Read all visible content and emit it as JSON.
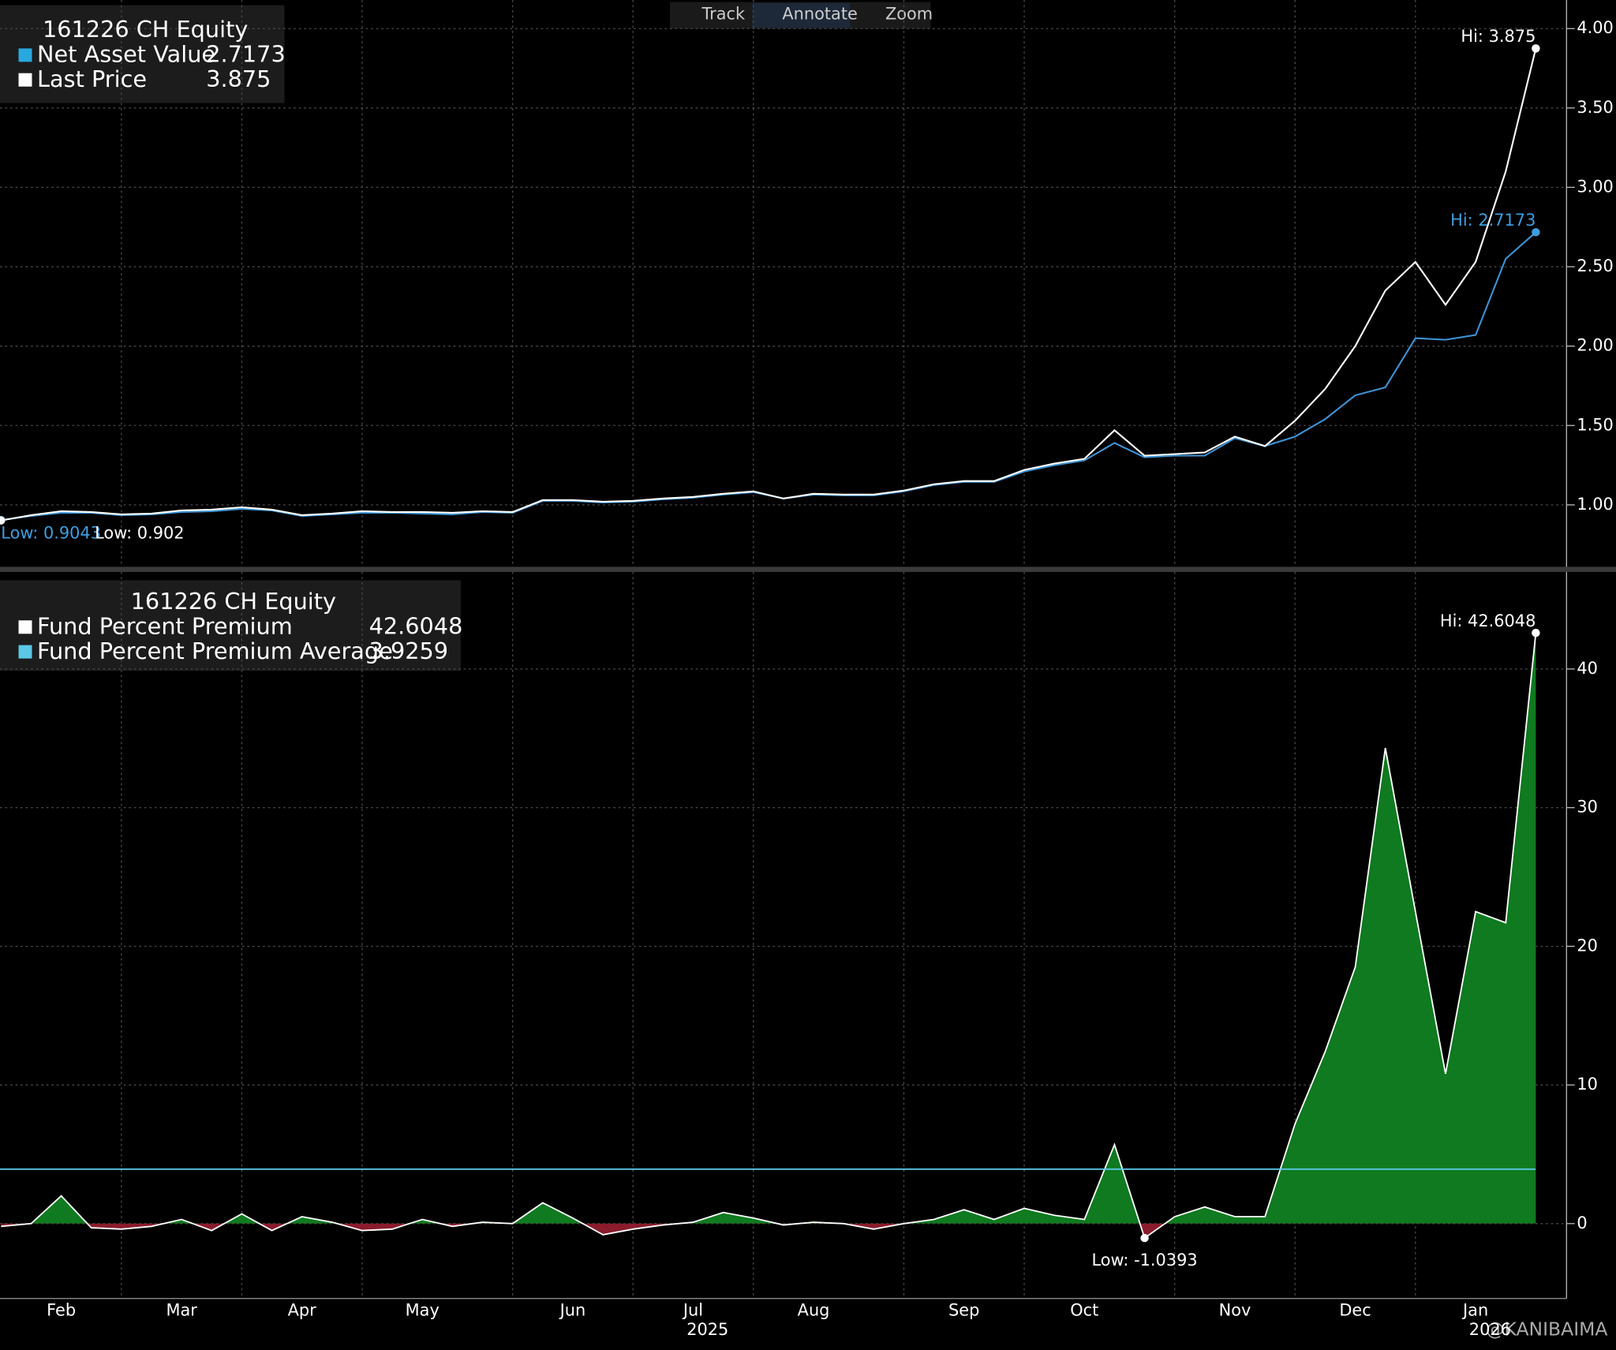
{
  "toolbar": [
    "Track",
    "Annotate",
    "Zoom"
  ],
  "watermark": "@KANIBAIMA",
  "chart_data": [
    {
      "type": "line",
      "title": "161226 CH Equity",
      "ylim": [
        0.61,
        4.18
      ],
      "yticks": [
        {
          "value": 1,
          "label": "1.00"
        },
        {
          "value": 1.5,
          "label": "1.50"
        },
        {
          "value": 2,
          "label": "2.00"
        },
        {
          "value": 2.5,
          "label": "2.50"
        },
        {
          "value": 3,
          "label": "3.00"
        },
        {
          "value": 3.5,
          "label": "3.50"
        },
        {
          "value": 4,
          "label": "4.00"
        }
      ],
      "grid": true,
      "series": [
        {
          "name": "Net Asset Value",
          "color": "#3d93d6",
          "hi_label": "Hi: 2.7173",
          "low_label": "Low: 0.9043",
          "values": [
            0.9043,
            0.93,
            0.95,
            0.95,
            0.935,
            0.94,
            0.955,
            0.96,
            0.975,
            0.965,
            0.93,
            0.94,
            0.95,
            0.95,
            0.945,
            0.94,
            0.955,
            0.95,
            1.025,
            1.025,
            1.015,
            1.02,
            1.035,
            1.045,
            1.065,
            1.08,
            1.04,
            1.065,
            1.06,
            1.06,
            1.085,
            1.125,
            1.145,
            1.145,
            1.21,
            1.25,
            1.28,
            1.39,
            1.3,
            1.31,
            1.31,
            1.42,
            1.37,
            1.43,
            1.54,
            1.69,
            1.74,
            2.05,
            2.04,
            2.07,
            2.55,
            2.7173
          ]
        },
        {
          "name": "Last Price",
          "color": "#ffffff",
          "hi_label": "Hi: 3.875",
          "low_label": "Low: 0.902",
          "values": [
            0.902,
            0.935,
            0.96,
            0.955,
            0.94,
            0.945,
            0.965,
            0.97,
            0.985,
            0.97,
            0.935,
            0.945,
            0.96,
            0.955,
            0.955,
            0.95,
            0.96,
            0.955,
            1.03,
            1.03,
            1.02,
            1.025,
            1.04,
            1.05,
            1.07,
            1.085,
            1.04,
            1.07,
            1.065,
            1.065,
            1.09,
            1.13,
            1.15,
            1.15,
            1.22,
            1.26,
            1.29,
            1.47,
            1.31,
            1.32,
            1.33,
            1.43,
            1.37,
            1.53,
            1.73,
            2.0,
            2.35,
            2.53,
            2.26,
            2.53,
            3.1,
            3.875
          ]
        }
      ]
    },
    {
      "type": "area",
      "title": "161226 CH Equity",
      "ylim": [
        -5.4,
        47
      ],
      "yticks": [
        0,
        10,
        20,
        30,
        40
      ],
      "grid": true,
      "categories": [
        null,
        null,
        "Feb",
        null,
        null,
        null,
        "Mar",
        null,
        null,
        null,
        "Apr",
        null,
        null,
        null,
        "May",
        null,
        null,
        null,
        null,
        "Jun",
        null,
        null,
        null,
        "Jul",
        null,
        null,
        null,
        "Aug",
        null,
        null,
        null,
        null,
        "Sep",
        null,
        null,
        null,
        "Oct",
        null,
        null,
        null,
        null,
        "Nov",
        null,
        null,
        null,
        "Dec",
        null,
        null,
        null,
        "Jan",
        null,
        null
      ],
      "years": [
        "2025",
        "2026"
      ],
      "series": [
        {
          "name": "Fund Percent Premium",
          "color": "#ffffff",
          "fill_positive": "#0f7a1f",
          "fill_negative": "#8a1c2c",
          "hi_label": "Hi: 42.6048",
          "low_label": "Low: -1.0393",
          "values": [
            -0.2,
            0,
            2.0,
            -0.3,
            -0.4,
            -0.2,
            0.3,
            -0.5,
            0.7,
            -0.5,
            0.5,
            0.1,
            -0.5,
            -0.4,
            0.3,
            -0.2,
            0.1,
            0,
            1.5,
            0.4,
            -0.8,
            -0.4,
            -0.1,
            0.1,
            0.8,
            0.4,
            -0.1,
            0.1,
            0,
            -0.4,
            0,
            0.3,
            1.0,
            0.3,
            1.1,
            0.6,
            0.3,
            5.7,
            -1.0393,
            0.5,
            1.2,
            0.5,
            0.5,
            7.2,
            12.4,
            18.5,
            34.3,
            22.5,
            10.8,
            22.5,
            21.7,
            42.6048
          ]
        },
        {
          "name": "Fund Percent Premium Average",
          "color": "#5bc8e6",
          "value": 3.9259
        }
      ]
    }
  ]
}
